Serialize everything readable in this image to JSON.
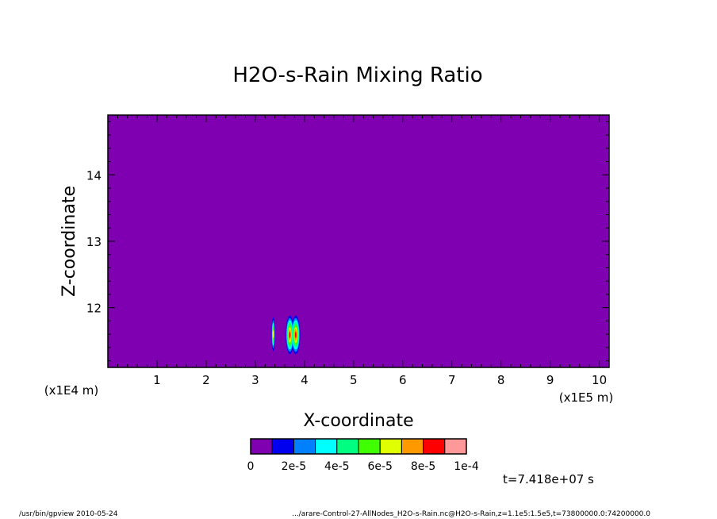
{
  "chart_data": {
    "type": "heatmap",
    "title": "H2O-s-Rain Mixing Ratio",
    "xlabel": "X-coordinate",
    "ylabel": "Z-coordinate",
    "x_unit": "(x1E5 m)",
    "y_unit": "(x1E4 m)",
    "xlim": [
      0,
      10.2
    ],
    "ylim": [
      11.1,
      14.9
    ],
    "x_ticks": [
      "1",
      "2",
      "3",
      "4",
      "5",
      "6",
      "7",
      "8",
      "9",
      "10"
    ],
    "y_ticks": [
      "12",
      "13",
      "14"
    ],
    "background_value": 0,
    "colorbar": {
      "colors": [
        "#7f00b0",
        "#0000ee",
        "#0080ff",
        "#00ffff",
        "#00ff80",
        "#40ff00",
        "#e0ff00",
        "#ff9900",
        "#ff0000",
        "#ff9999"
      ],
      "labels": [
        "0",
        "2e-5",
        "4e-5",
        "6e-5",
        "8e-5",
        "1e-4"
      ],
      "range": [
        0,
        0.0001
      ]
    },
    "features": [
      {
        "x_range": [
          3.33,
          3.4
        ],
        "z_range": [
          11.35,
          11.85
        ],
        "max_value": 6e-05
      },
      {
        "x_range": [
          3.62,
          3.92
        ],
        "z_range": [
          11.3,
          11.88
        ],
        "max_value": 8e-05
      }
    ],
    "time_label": "t=7.418e+07 s"
  },
  "footer": {
    "left": "/usr/bin/gpview  2010-05-24",
    "right": ".../arare-Control-27-AllNodes_H2O-s-Rain.nc@H2O-s-Rain,z=1.1e5:1.5e5,t=73800000.0:74200000.0"
  }
}
